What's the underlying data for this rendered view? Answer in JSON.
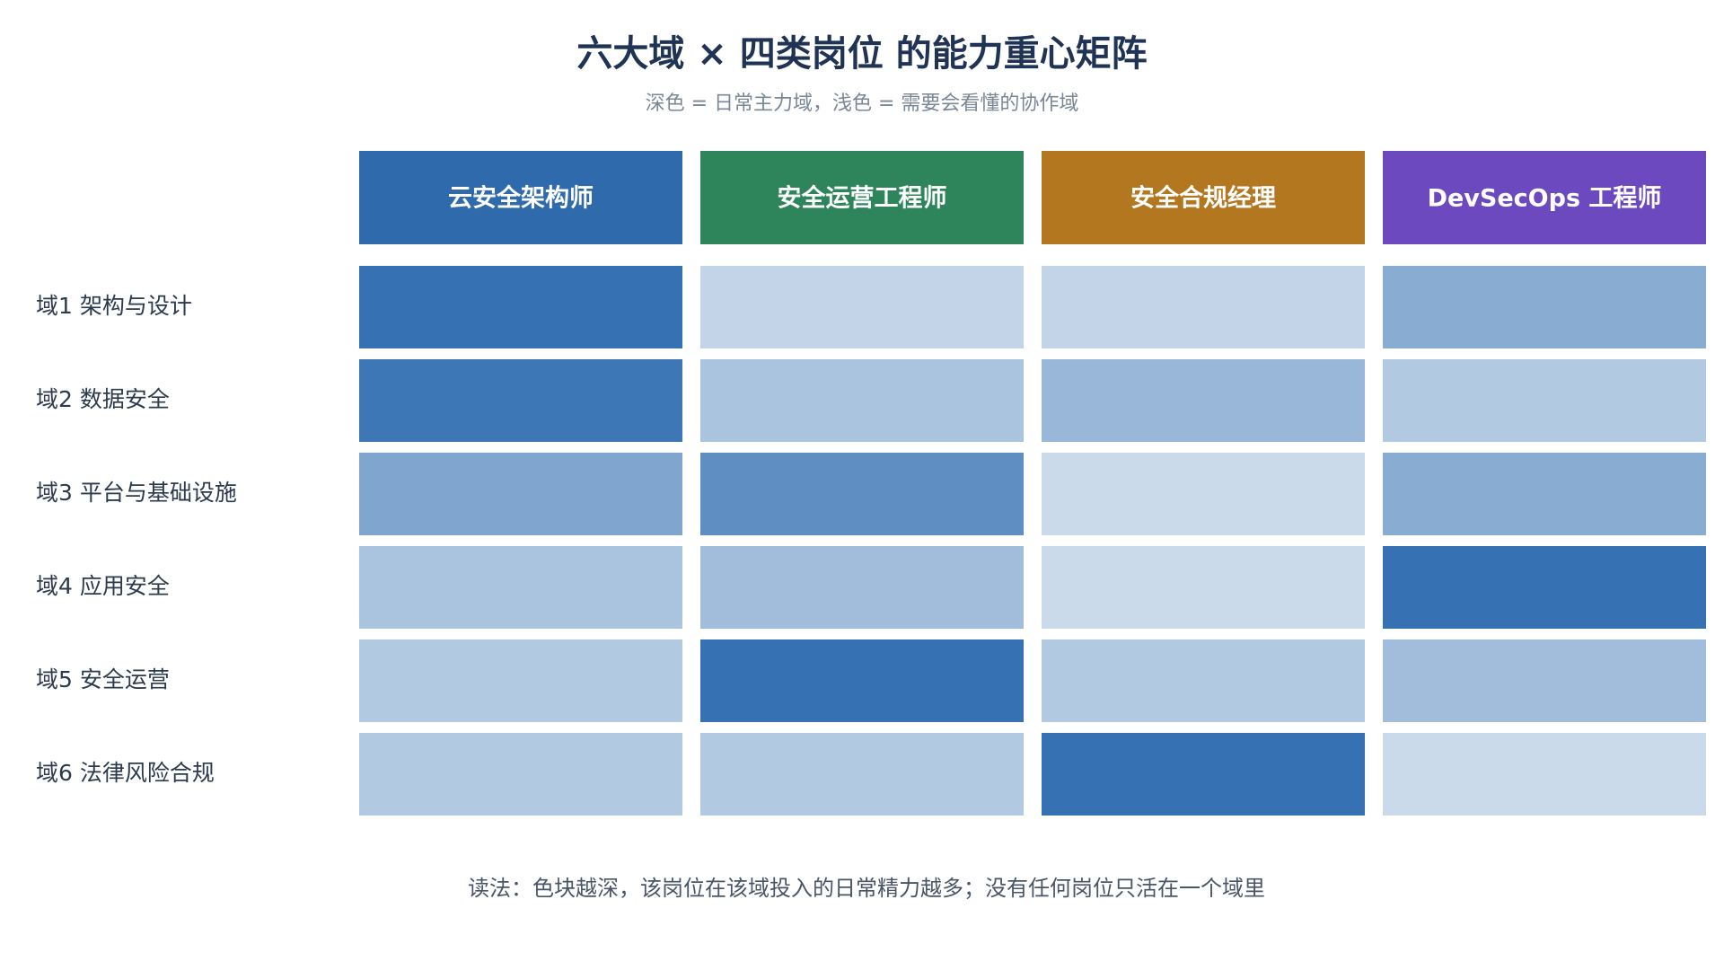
{
  "chart_data": {
    "type": "heatmap",
    "title": "六大域 × 四类岗位 的能力重心矩阵",
    "subtitle": "深色 = 日常主力域，浅色 = 需要会看懂的协作域",
    "x": [
      {
        "label": "云安全架构师",
        "color": "#2f6aad"
      },
      {
        "label": "安全运营工程师",
        "color": "#2e855b"
      },
      {
        "label": "安全合规经理",
        "color": "#b37720"
      },
      {
        "label": "DevSecOps 工程师",
        "color": "#6d49bf"
      }
    ],
    "y": [
      "域1 架构与设计",
      "域2 数据安全",
      "域3 平台与基础设施",
      "域4 应用安全",
      "域5 安全运营",
      "域6 法律风险合规"
    ],
    "values": [
      [
        1.0,
        0.15,
        0.15,
        0.5
      ],
      [
        0.95,
        0.3,
        0.4,
        0.25
      ],
      [
        0.55,
        0.75,
        0.1,
        0.5
      ],
      [
        0.3,
        0.35,
        0.1,
        1.0
      ],
      [
        0.25,
        1.0,
        0.25,
        0.35
      ],
      [
        0.25,
        0.25,
        1.0,
        0.1
      ]
    ],
    "vlim": [
      0,
      1
    ],
    "color_range": [
      "#dce6f1",
      "#3571b3"
    ],
    "footnote": "读法：色块越深，该岗位在该域投入的日常精力越多；没有任何岗位只活在一个域里"
  }
}
